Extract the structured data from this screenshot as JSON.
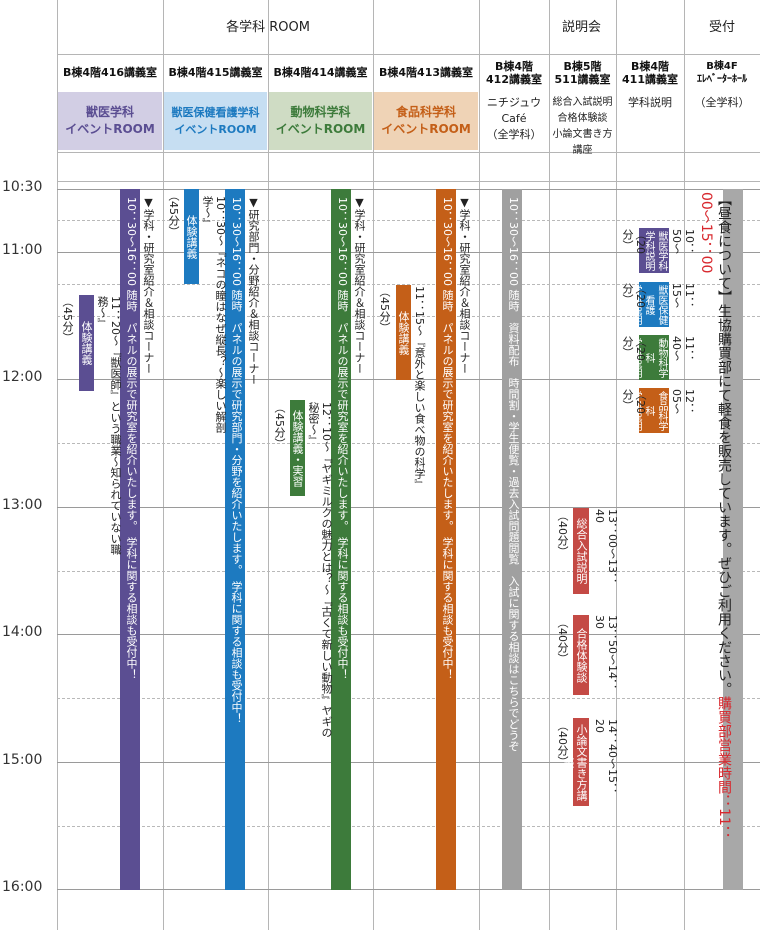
{
  "colors": {
    "purple": "#5b4e92",
    "blue": "#1d7ac0",
    "green": "#3d7b3b",
    "orange": "#c45f18",
    "gray": "#a0a0a0",
    "red": "#c44a45",
    "hours_red": "#d8282e"
  },
  "header": {
    "groups": [
      "各学科 ROOM",
      "説明会",
      "受付"
    ]
  },
  "rooms": [
    "B棟4階416講義室",
    "B棟4階415講義室",
    "B棟4階414講義室",
    "B棟4階413講義室",
    "B棟4階\n412講義室",
    "B棟5階\n511講義室",
    "B棟4階\n411講義室",
    "B棟4F\nｴﾚﾍﾞｰﾀｰﾎｰﾙ"
  ],
  "banners": [
    "獣医学科\nイベントROOM",
    "獣医保健看護学科\nイベントROOM",
    "動物科学科\nイベントROOM",
    "食品科学科\nイベントROOM"
  ],
  "subs": {
    "c412": "ニチジュウ\nCafé\n（全学科）",
    "c511": "総合入試説明\n合格体験談\n小論文書き方講座",
    "c411": "学科説明",
    "uketsuke": "（全学科）"
  },
  "times": [
    "10:30",
    "11:00",
    "12:00",
    "13:00",
    "14:00",
    "15:00",
    "16:00"
  ],
  "events": {
    "c416": {
      "corner": "▼学科・研究室紹介＆相談コーナー",
      "bar": "10：30〜16：00 随時　パネルの展示で研究室を紹介いたします。　学科に関する相談も受付中！",
      "box": "体験講義",
      "dur": "（45分）",
      "desc": "11：20〜『獣医師』という職業〜知られていない職務〜』"
    },
    "c415": {
      "corner": "▼研究部門・分野紹介＆相談コーナー",
      "bar": "10：30〜16：00 随時　パネルの展示で研究部門・分野を紹介いたします。　学科に関する相談も受付中！",
      "box": "体験講義",
      "dur": "（45分）",
      "desc": "10：30〜『ネコの瞳はなぜ縦長？〜楽しい解剖学〜』"
    },
    "c414": {
      "corner": "▼学科・研究室紹介＆相談コーナー",
      "bar": "10：30〜16：00 随時　パネルの展示で研究室を紹介いたします。　学科に関する相談も受付中！",
      "box": "体験講義・実習",
      "dur": "（45分）",
      "desc": "12：10〜『ヤギミルクの魅力とは？〜『古くて新しい動物』ヤギの秘密〜』"
    },
    "c413": {
      "corner": "▼学科・研究室紹介＆相談コーナー",
      "bar": "10：30〜16：00 随時　パネルの展示で研究室を紹介いたします。　学科に関する相談も受付中！",
      "box": "体験講義",
      "dur": "（45分）",
      "desc": "11：15〜『意外と楽しい食べ物の科学』"
    },
    "c412": {
      "bar": "10：30〜16：00 随時　資料配布　時間割・学生便覧・過去入試問題閲覧　入試に関する相談はこちらでどうぞ"
    },
    "c511": [
      {
        "box": "総合入試説明",
        "time": "13：00〜13：40",
        "dur": "（40分）"
      },
      {
        "box": "合格体験談",
        "time": "13：50〜14：30",
        "dur": "（40分）"
      },
      {
        "box": "小論文書き方講座",
        "time": "14：40〜15：20",
        "dur": "（40分）"
      }
    ],
    "c411": [
      {
        "box": "獣医学科\n学科説明",
        "time": "10：50〜",
        "dur": "（20分）"
      },
      {
        "box": "獣医保健看護\n学科説明",
        "time": "11：15〜",
        "dur": "（20分）"
      },
      {
        "box": "動物科学科\n学科説明",
        "time": "11：40〜",
        "dur": "（20分）"
      },
      {
        "box": "食品科学科\n学科説明",
        "time": "12：05〜",
        "dur": "（20分）"
      }
    ],
    "reception": {
      "note": "【昼食について】生協購買部にて軽食を販売しています。ぜひご利用ください。",
      "hours": "購買部営業時間：11：00〜15：00"
    }
  }
}
